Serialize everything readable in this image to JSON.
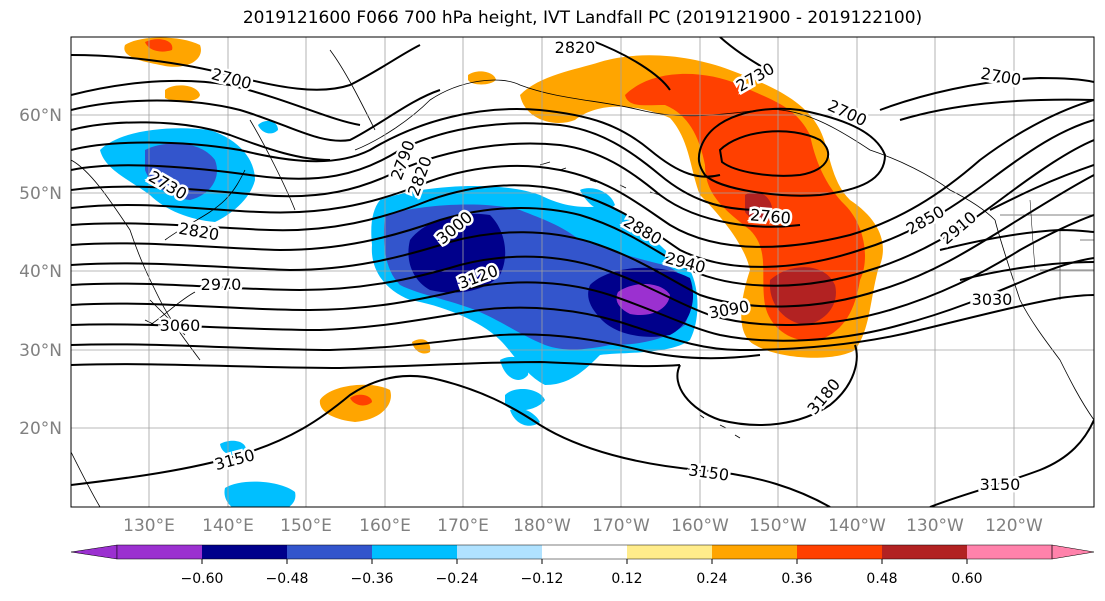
{
  "title": "2019121600 F066 700 hPa height, IVT Landfall PC (2019121900 - 2019122100)",
  "lat_labels": [
    "60°N",
    "50°N",
    "40°N",
    "30°N",
    "20°N"
  ],
  "lon_labels": [
    "130°E",
    "140°E",
    "150°E",
    "160°E",
    "170°E",
    "180°W",
    "170°W",
    "160°W",
    "150°W",
    "140°W",
    "130°W",
    "120°W"
  ],
  "contour_labels": [
    "2700",
    "2820",
    "2730",
    "2700",
    "2700",
    "2730",
    "2820",
    "2790",
    "2820",
    "3000",
    "2880",
    "2760",
    "2850",
    "2910",
    "2940",
    "2970",
    "3120",
    "3090",
    "3030",
    "3060",
    "3180",
    "3150",
    "3150",
    "3150"
  ],
  "colorbar": {
    "tick_labels": [
      "−0.60",
      "−0.48",
      "−0.36",
      "−0.24",
      "−0.12",
      "0.12",
      "0.24",
      "0.36",
      "0.48",
      "0.60"
    ],
    "colors": [
      "#9b30d0",
      "#00008b",
      "#3355cc",
      "#00bfff",
      "#b0e2ff",
      "#ffffff",
      "#ffec8b",
      "#ffa500",
      "#ff4000",
      "#b22222",
      "#ff82ab"
    ]
  },
  "shading_colors": {
    "purple": "#9b30d0",
    "navy": "#00008b",
    "blue": "#3355cc",
    "sky": "#00bfff",
    "lightsky": "#b0e2ff",
    "yellow": "#ffec8b",
    "orange": "#ffa500",
    "redorange": "#ff4000",
    "firebrick": "#b22222"
  }
}
